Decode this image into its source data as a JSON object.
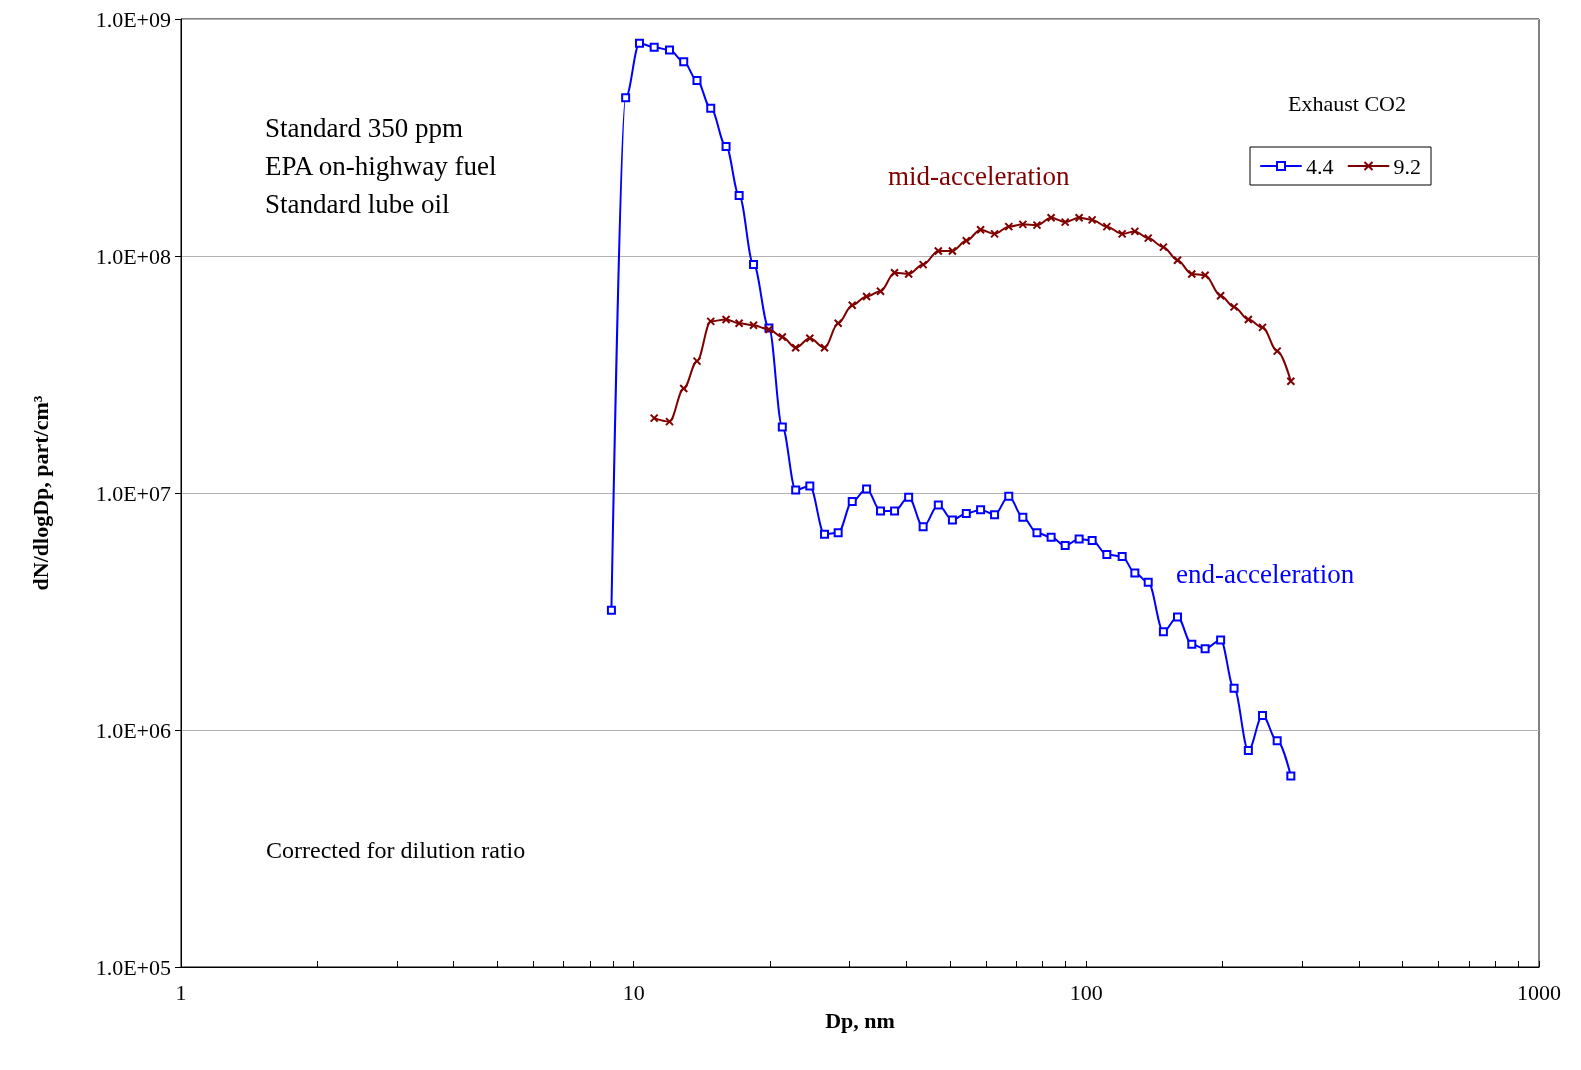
{
  "chart_data": {
    "type": "line",
    "xlabel": "Dp, nm",
    "ylabel": "dN/dlogDp, part/cm³",
    "legend_title": "Exhaust CO2",
    "legend": "top right",
    "log": "xy",
    "grid": "y",
    "line_style": "solid",
    "xlim": [
      1,
      1000
    ],
    "xticks": [
      1,
      10,
      100,
      1000
    ],
    "ylim": [
      100000,
      1000000000
    ],
    "yticks": [
      {
        "value": 100000,
        "label": "1.0E+05"
      },
      {
        "value": 1000000,
        "label": "1.0E+06"
      },
      {
        "value": 10000000,
        "label": "1.0E+07"
      },
      {
        "value": 100000000,
        "label": "1.0E+08"
      },
      {
        "value": 1000000000,
        "label": "1.0E+09"
      }
    ],
    "annotations": [
      "Standard 350 ppm",
      "EPA on-highway fuel",
      "Standard lube oil",
      "Corrected for dilution ratio",
      "mid-acceleration",
      "end-acceleration"
    ],
    "series": [
      {
        "name": "4.4",
        "color": "#0000ff",
        "marker": "square",
        "x": [
          8.93,
          9.6,
          10.3,
          11.1,
          12.0,
          12.9,
          13.8,
          14.8,
          16.0,
          17.1,
          18.4,
          19.9,
          21.3,
          22.8,
          24.5,
          26.4,
          28.3,
          30.4,
          32.7,
          35.1,
          37.7,
          40.5,
          43.6,
          47.1,
          50.6,
          54.3,
          58.4,
          62.7,
          67.4,
          72.4,
          77.8,
          83.6,
          89.8,
          96.4,
          103,
          111,
          120,
          128,
          137,
          148,
          159,
          171,
          183,
          198,
          212,
          228,
          245,
          264,
          283
        ],
        "values": [
          3200000,
          465000000,
          790000000,
          760000000,
          740000000,
          660000000,
          550000000,
          420000000,
          290000000,
          180000000,
          92000000,
          49700000,
          19000000,
          10300000,
          10700000,
          6700000,
          6800000,
          9200000,
          10400000,
          8400000,
          8400000,
          9600000,
          7200000,
          8900000,
          7700000,
          8200000,
          8500000,
          8100000,
          9700000,
          7900000,
          6800000,
          6500000,
          6000000,
          6400000,
          6300000,
          5500000,
          5400000,
          4600000,
          4200000,
          2600000,
          3000000,
          2300000,
          2200000,
          2400000,
          1500000,
          820000,
          1150000,
          900000,
          640000
        ]
      },
      {
        "name": "9.2",
        "color": "#800000",
        "marker": "cross",
        "x": [
          11.1,
          12.0,
          12.9,
          13.8,
          14.8,
          16.0,
          17.1,
          18.4,
          19.9,
          21.3,
          22.8,
          24.5,
          26.4,
          28.3,
          30.4,
          32.7,
          35.1,
          37.7,
          40.5,
          43.6,
          47.1,
          50.6,
          54.3,
          58.4,
          62.7,
          67.4,
          72.4,
          77.8,
          83.6,
          89.8,
          96.4,
          103,
          111,
          120,
          128,
          137,
          148,
          159,
          171,
          183,
          198,
          212,
          228,
          245,
          264,
          283
        ],
        "values": [
          20700000,
          20000000,
          27600000,
          36000000,
          53000000,
          54000000,
          52000000,
          51000000,
          49000000,
          45500000,
          41000000,
          45000000,
          41000000,
          52000000,
          62000000,
          67500000,
          71000000,
          85000000,
          84000000,
          92000000,
          105000000,
          105000000,
          116000000,
          129000000,
          124000000,
          133000000,
          136000000,
          135000000,
          145000000,
          139000000,
          145000000,
          142000000,
          133000000,
          124000000,
          127000000,
          119000000,
          109000000,
          96000000,
          84000000,
          83000000,
          68000000,
          61000000,
          54000000,
          50000000,
          39700000,
          29600000
        ]
      }
    ]
  }
}
